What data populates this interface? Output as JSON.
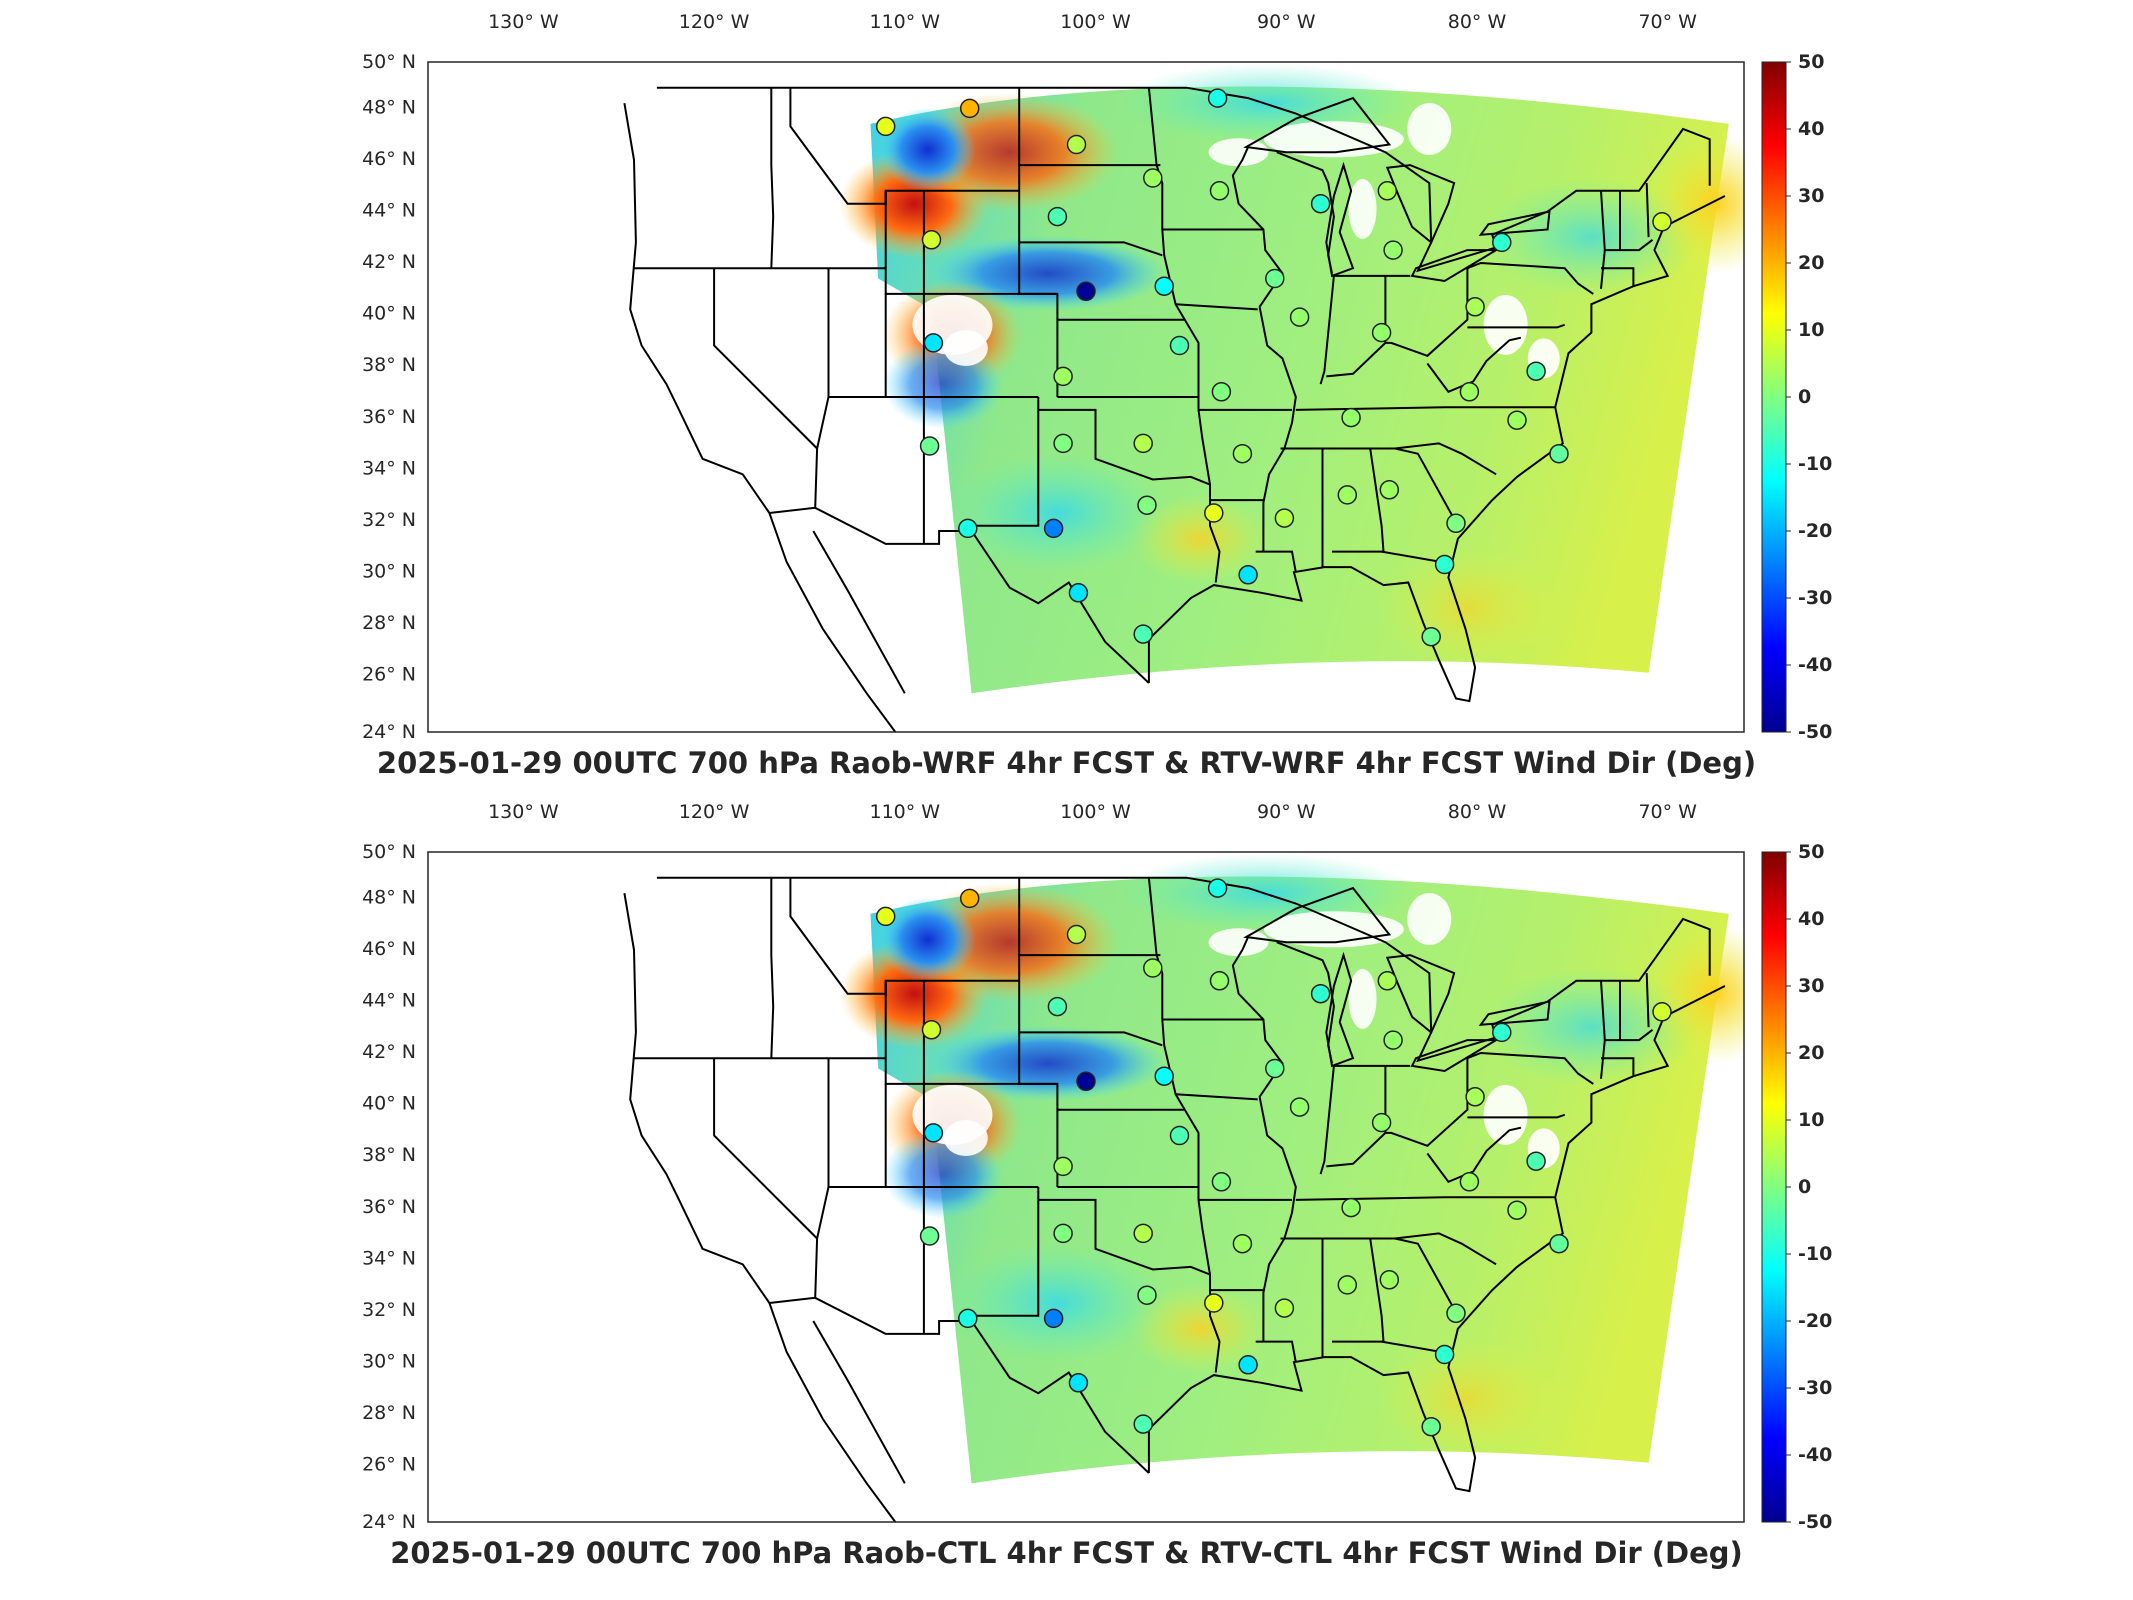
{
  "panels": [
    {
      "title": "2025-01-29 00UTC 700 hPa Raob-WRF 4hr FCST & RTV-WRF 4hr FCST Wind Dir (Deg)",
      "lon_labels": [
        "130° W",
        "120° W",
        "110° W",
        "100° W",
        "90° W",
        "80° W",
        "70° W"
      ],
      "lat_labels": [
        "50° N",
        "48° N",
        "46° N",
        "44° N",
        "42° N",
        "40° N",
        "38° N",
        "36° N",
        "34° N",
        "32° N",
        "30° N",
        "28° N",
        "26° N",
        "24° N"
      ],
      "colorbar_ticks": [
        "50",
        "40",
        "30",
        "20",
        "10",
        "0",
        "-10",
        "-20",
        "-30",
        "-40",
        "-50"
      ]
    },
    {
      "title": "2025-01-29 00UTC 700 hPa Raob-CTL 4hr FCST & RTV-CTL 4hr FCST Wind Dir (Deg)",
      "lon_labels": [
        "130° W",
        "120° W",
        "110° W",
        "100° W",
        "90° W",
        "80° W",
        "70° W"
      ],
      "lat_labels": [
        "50° N",
        "48° N",
        "46° N",
        "44° N",
        "42° N",
        "40° N",
        "38° N",
        "36° N",
        "34° N",
        "32° N",
        "30° N",
        "28° N",
        "26° N",
        "24° N"
      ],
      "colorbar_ticks": [
        "50",
        "40",
        "30",
        "20",
        "10",
        "0",
        "-10",
        "-20",
        "-30",
        "-40",
        "-50"
      ]
    }
  ],
  "colorbar": {
    "min": -50,
    "max": 50,
    "colormap": "jet",
    "colors": [
      "#00008f",
      "#0000ff",
      "#0080ff",
      "#00ffff",
      "#80ff80",
      "#ffff00",
      "#ff8000",
      "#ff0000",
      "#800000"
    ]
  },
  "field_colors": {
    "background_field": "#8fe88a",
    "western_positive": "#e8431c",
    "western_negative": "#1f5fd8",
    "cyan_zone": "#3fe0e0",
    "yellow_zone": "#e6ee3a"
  },
  "raob_stations": [
    {
      "lon": -111.0,
      "lat": 47.5,
      "value": 10
    },
    {
      "lon": -106.6,
      "lat": 48.2,
      "value": 20
    },
    {
      "lon": -101.0,
      "lat": 46.8,
      "value": 5
    },
    {
      "lon": -97.0,
      "lat": 45.5,
      "value": 3
    },
    {
      "lon": -93.6,
      "lat": 48.6,
      "value": -10
    },
    {
      "lon": -93.5,
      "lat": 45.0,
      "value": 2
    },
    {
      "lon": -88.2,
      "lat": 44.5,
      "value": -8
    },
    {
      "lon": -84.7,
      "lat": 45.0,
      "value": 4
    },
    {
      "lon": -84.4,
      "lat": 42.7,
      "value": 2
    },
    {
      "lon": -78.7,
      "lat": 43.0,
      "value": -8
    },
    {
      "lon": -70.3,
      "lat": 43.8,
      "value": 8
    },
    {
      "lon": -102.0,
      "lat": 44.0,
      "value": -5
    },
    {
      "lon": -108.6,
      "lat": 43.1,
      "value": 8
    },
    {
      "lon": -100.5,
      "lat": 41.1,
      "value": -48
    },
    {
      "lon": -96.4,
      "lat": 41.3,
      "value": -12
    },
    {
      "lon": -90.6,
      "lat": 41.6,
      "value": -2
    },
    {
      "lon": -89.3,
      "lat": 40.1,
      "value": 2
    },
    {
      "lon": -85.0,
      "lat": 39.5,
      "value": 2
    },
    {
      "lon": -80.1,
      "lat": 40.5,
      "value": 4
    },
    {
      "lon": -108.5,
      "lat": 39.1,
      "value": -15
    },
    {
      "lon": -101.7,
      "lat": 37.8,
      "value": 3
    },
    {
      "lon": -95.6,
      "lat": 39.0,
      "value": -5
    },
    {
      "lon": -93.4,
      "lat": 37.2,
      "value": 0
    },
    {
      "lon": -80.4,
      "lat": 37.2,
      "value": 3
    },
    {
      "lon": -86.6,
      "lat": 36.2,
      "value": 2
    },
    {
      "lon": -77.9,
      "lat": 36.1,
      "value": 3
    },
    {
      "lon": -108.7,
      "lat": 35.1,
      "value": -2
    },
    {
      "lon": -101.7,
      "lat": 35.2,
      "value": 0
    },
    {
      "lon": -97.5,
      "lat": 35.2,
      "value": 5
    },
    {
      "lon": -92.3,
      "lat": 34.8,
      "value": 3
    },
    {
      "lon": -75.7,
      "lat": 34.8,
      "value": -3
    },
    {
      "lon": -106.7,
      "lat": 31.9,
      "value": -10
    },
    {
      "lon": -102.2,
      "lat": 31.9,
      "value": -25
    },
    {
      "lon": -97.3,
      "lat": 32.8,
      "value": 0
    },
    {
      "lon": -93.8,
      "lat": 32.5,
      "value": 10
    },
    {
      "lon": -90.1,
      "lat": 32.3,
      "value": 5
    },
    {
      "lon": -86.8,
      "lat": 33.2,
      "value": 3
    },
    {
      "lon": -84.6,
      "lat": 33.4,
      "value": 3
    },
    {
      "lon": -81.1,
      "lat": 32.1,
      "value": 0
    },
    {
      "lon": -100.9,
      "lat": 29.4,
      "value": -15
    },
    {
      "lon": -97.5,
      "lat": 27.8,
      "value": -5
    },
    {
      "lon": -92.0,
      "lat": 30.1,
      "value": -15
    },
    {
      "lon": -81.7,
      "lat": 30.5,
      "value": -8
    },
    {
      "lon": -82.4,
      "lat": 27.7,
      "value": -2
    },
    {
      "lon": -76.9,
      "lat": 38.0,
      "value": -5
    }
  ]
}
